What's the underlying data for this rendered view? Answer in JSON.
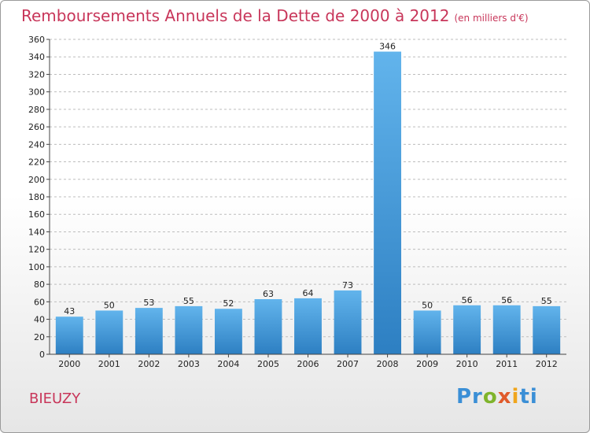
{
  "header": {
    "title": "Remboursements Annuels de la Dette de 2000 à 2012",
    "subtitle": "(en milliers d'€)"
  },
  "footer": {
    "place": "BIEUZY",
    "logo": "Proxiti"
  },
  "colors": {
    "title": "#c8365a",
    "bar_top": "#62b4ec",
    "bar_bottom": "#2d7fc2",
    "grid": "#bdbdbd"
  },
  "chart_data": {
    "type": "bar",
    "title": "Remboursements Annuels de la Dette de 2000 à 2012",
    "subtitle": "(en milliers d'€)",
    "xlabel": "",
    "ylabel": "",
    "categories": [
      "2000",
      "2001",
      "2002",
      "2003",
      "2004",
      "2005",
      "2006",
      "2007",
      "2008",
      "2009",
      "2010",
      "2011",
      "2012"
    ],
    "values": [
      43,
      50,
      53,
      55,
      52,
      63,
      64,
      73,
      346,
      50,
      56,
      56,
      55
    ],
    "ylim": [
      0,
      360
    ],
    "yticks": [
      0,
      20,
      40,
      60,
      80,
      100,
      120,
      140,
      160,
      180,
      200,
      220,
      240,
      260,
      280,
      300,
      320,
      340,
      360
    ],
    "grid": true,
    "legend": "none"
  }
}
